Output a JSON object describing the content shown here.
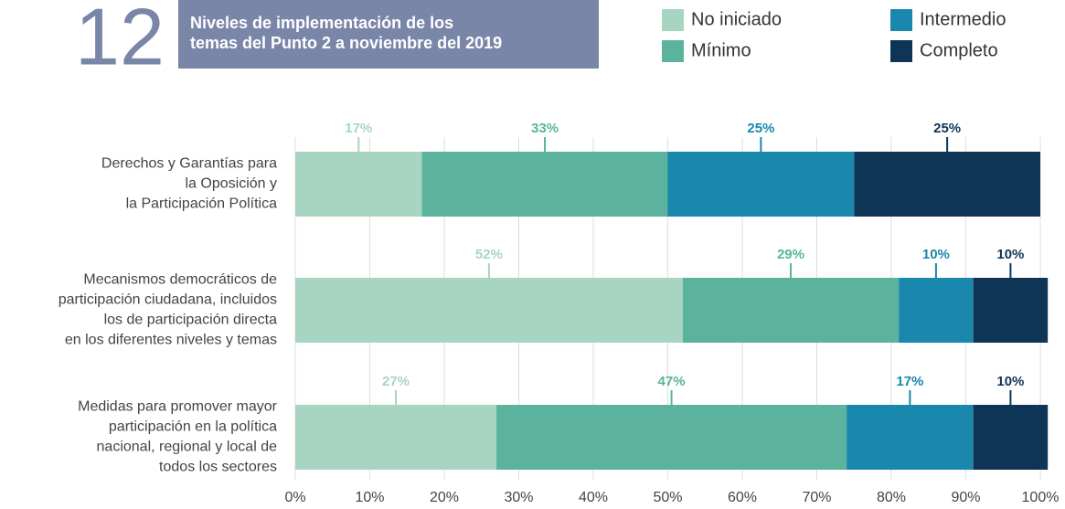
{
  "chart_data": {
    "type": "stacked_barh",
    "figure_number": "12",
    "title": [
      "Niveles de implementación de los",
      "temas del Punto 2 a noviembre del 2019"
    ],
    "categories": [
      [
        "Derechos y Garantías para",
        "la Oposición y",
        "la Participación Política"
      ],
      [
        "Mecanismos democráticos de",
        "participación ciudadana, incluidos",
        "los de participación directa",
        "en los diferentes niveles y temas"
      ],
      [
        "Medidas para promover mayor",
        "participación en la política",
        "nacional, regional y local de",
        "todos los sectores"
      ]
    ],
    "series": [
      {
        "name": "No iniciado",
        "color": "#a8d5c2",
        "values": [
          17,
          52,
          27
        ],
        "value_labels": [
          "17%",
          "52%",
          "27%"
        ]
      },
      {
        "name": "Mínimo",
        "color": "#5bb39e",
        "values": [
          33,
          29,
          47
        ],
        "value_labels": [
          "33%",
          "29%",
          "47%"
        ]
      },
      {
        "name": "Intermedio",
        "color": "#1a87ac",
        "values": [
          25,
          10,
          17
        ],
        "value_labels": [
          "25%",
          "10%",
          "17%"
        ]
      },
      {
        "name": "Completo",
        "color": "#0f3556",
        "values": [
          25,
          10,
          10
        ],
        "value_labels": [
          "25%",
          "10%",
          "10%"
        ]
      }
    ],
    "xlim": [
      0,
      100
    ],
    "xticks": [
      {
        "value": 0,
        "label": "0%"
      },
      {
        "value": 10,
        "label": "10%"
      },
      {
        "value": 20,
        "label": "20%"
      },
      {
        "value": 30,
        "label": "30%"
      },
      {
        "value": 40,
        "label": "40%"
      },
      {
        "value": 50,
        "label": "50%"
      },
      {
        "value": 60,
        "label": "60%"
      },
      {
        "value": 70,
        "label": "70%"
      },
      {
        "value": 80,
        "label": "80%"
      },
      {
        "value": 90,
        "label": "90%"
      },
      {
        "value": 100,
        "label": "100%"
      }
    ],
    "grid": true
  }
}
